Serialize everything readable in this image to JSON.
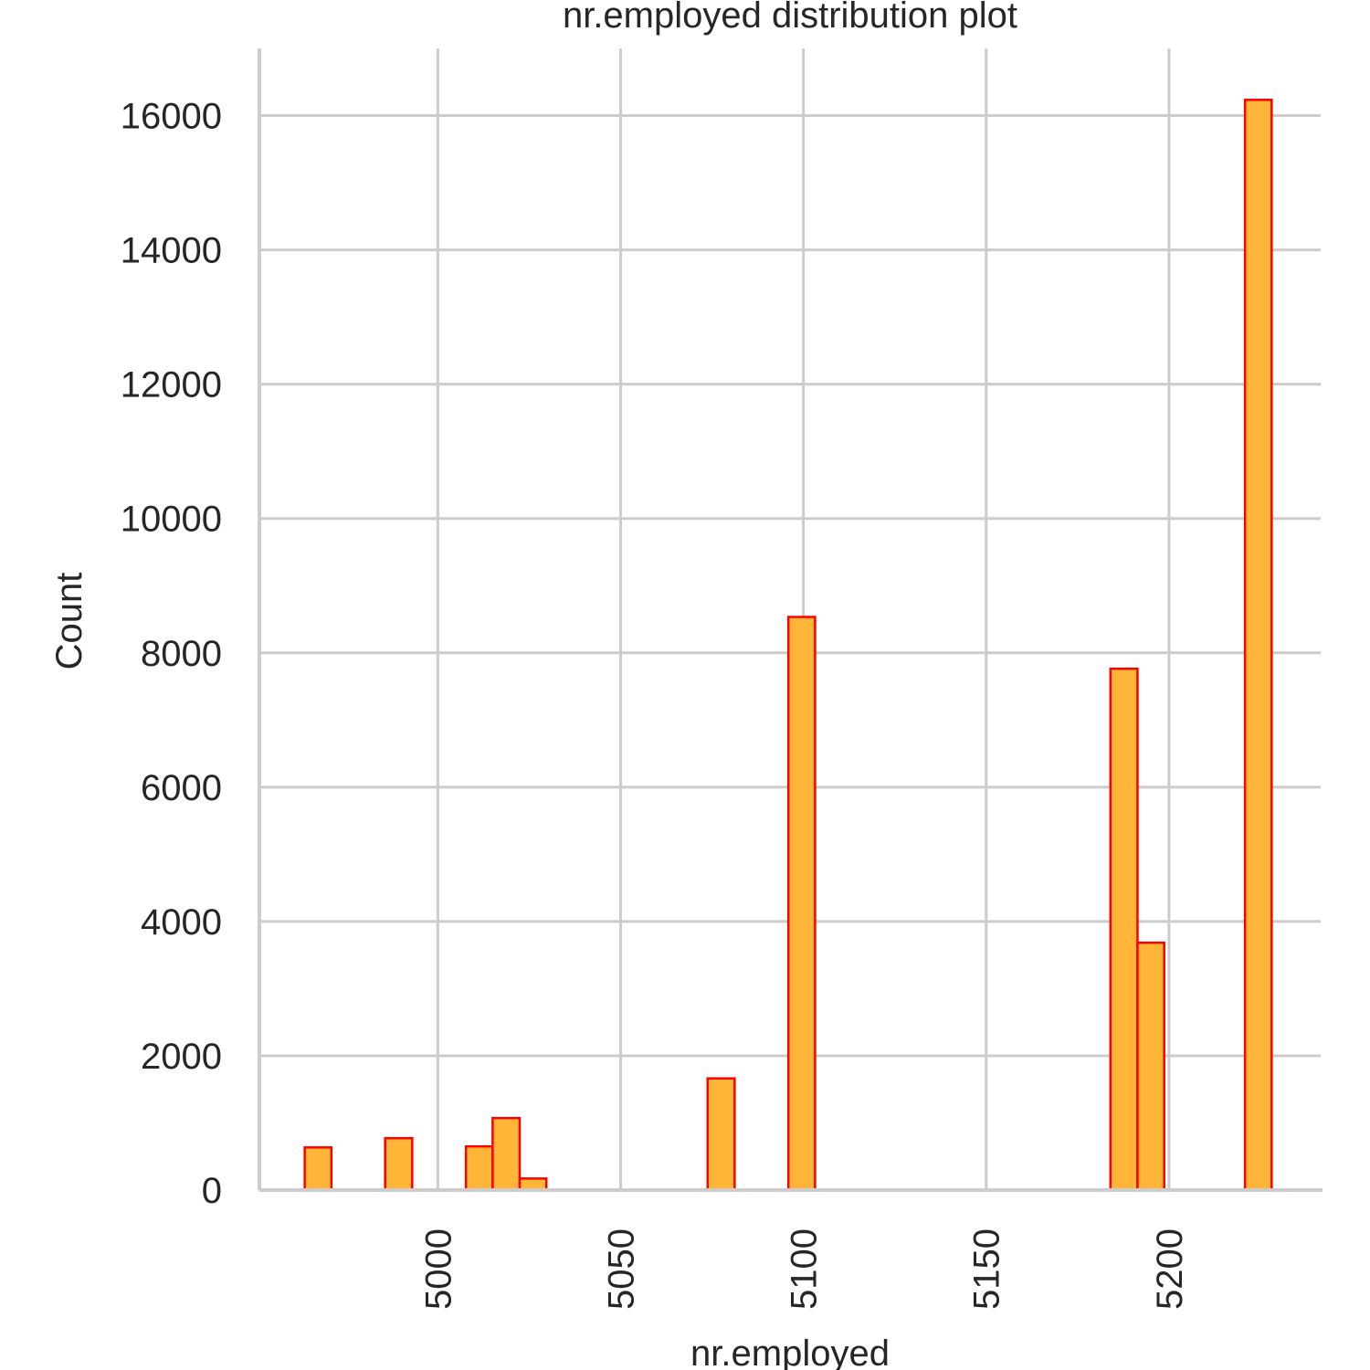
{
  "chart_data": {
    "type": "bar",
    "title": "nr.employed distribution plot",
    "xlabel": "nr.employed",
    "ylabel": "Count",
    "xlim": [
      4951.2,
      5241.5
    ],
    "ylim": [
      0,
      17000
    ],
    "x_ticks": [
      5000,
      5050,
      5100,
      5150,
      5200
    ],
    "y_ticks": [
      0,
      2000,
      4000,
      6000,
      8000,
      10000,
      12000,
      14000,
      16000
    ],
    "grid": true,
    "bin_width": 7.35,
    "bins": [
      {
        "x0": 4963.6,
        "x1": 4970.9,
        "count": 635
      },
      {
        "x0": 4985.6,
        "x1": 4993.0,
        "count": 773
      },
      {
        "x0": 5007.7,
        "x1": 5015.0,
        "count": 650
      },
      {
        "x0": 5015.0,
        "x1": 5022.4,
        "count": 1072
      },
      {
        "x0": 5022.4,
        "x1": 5029.7,
        "count": 172
      },
      {
        "x0": 5073.8,
        "x1": 5081.2,
        "count": 1663
      },
      {
        "x0": 5095.9,
        "x1": 5103.2,
        "count": 8534
      },
      {
        "x0": 5169.3,
        "x1": 5176.7,
        "count": 7
      },
      {
        "x0": 5184.0,
        "x1": 5191.4,
        "count": 7763
      },
      {
        "x0": 5191.4,
        "x1": 5198.7,
        "count": 3683
      },
      {
        "x0": 5220.8,
        "x1": 5228.1,
        "count": 16234
      }
    ],
    "bar_fill": "#ffb638",
    "bar_edge": "#ff0000",
    "grid_color": "#cccccc",
    "spine_color": "#cccccc",
    "background": "#ffffff"
  }
}
